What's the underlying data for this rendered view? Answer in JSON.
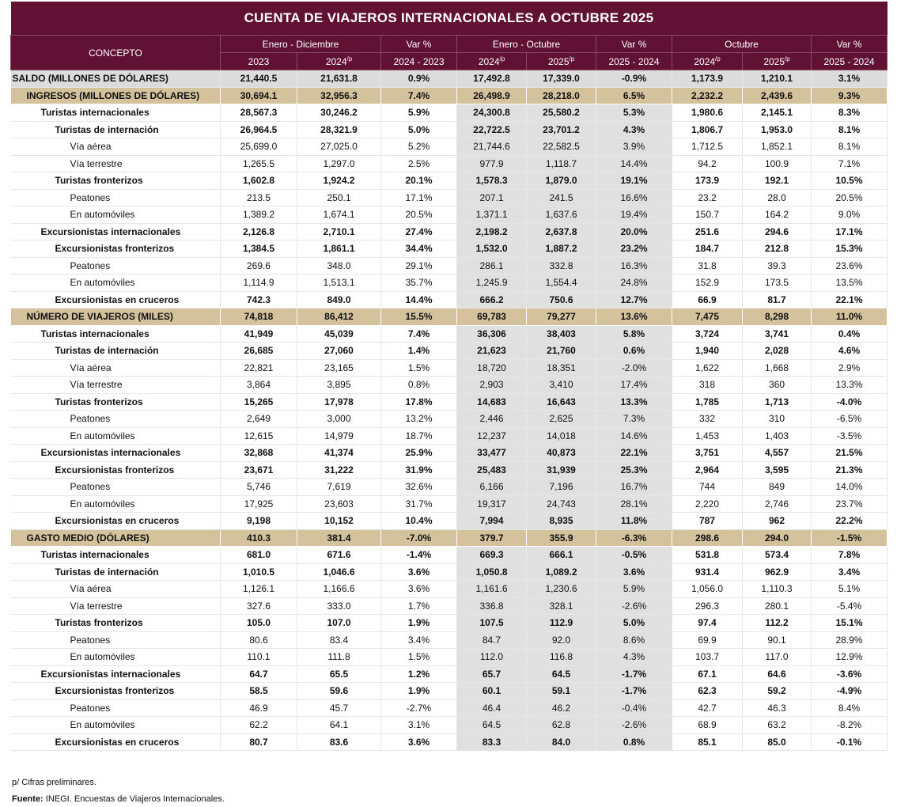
{
  "title": "CUENTA DE VIAJEROS INTERNACIONALES A OCTUBRE 2025",
  "header": {
    "concepto": "CONCEPTO",
    "groups": [
      "Enero - Diciembre",
      "Var %",
      "Enero - Octubre",
      "Var %",
      "Octubre",
      "Var %"
    ],
    "sub": [
      {
        "t": "2023",
        "p": ""
      },
      {
        "t": "2024",
        "p": "/p"
      },
      {
        "t": "2024 - 2023",
        "p": ""
      },
      {
        "t": "2024",
        "p": "/p"
      },
      {
        "t": "2025",
        "p": "/p"
      },
      {
        "t": "2025 - 2024",
        "p": ""
      },
      {
        "t": "2024",
        "p": "/p"
      },
      {
        "t": "2025",
        "p": "/p"
      },
      {
        "t": "2025 - 2024",
        "p": ""
      }
    ]
  },
  "colors": {
    "header_bg": "#611232",
    "section_bg": "#d4c29c",
    "saldo_bg": "#dcdcdc",
    "shade": "#e0e0e0"
  },
  "rows": [
    {
      "label": "SALDO (MILLONES DE DÓLARES)",
      "type": "saldo",
      "lvl": 0,
      "v": [
        "21,440.5",
        "21,631.8",
        "0.9%",
        "17,492.8",
        "17,339.0",
        "-0.9%",
        "1,173.9",
        "1,210.1",
        "3.1%"
      ]
    },
    {
      "label": "INGRESOS (MILLONES DE DÓLARES)",
      "type": "section",
      "lvl": 1,
      "v": [
        "30,694.1",
        "32,956.3",
        "7.4%",
        "26,498.9",
        "28,218.0",
        "6.5%",
        "2,232.2",
        "2,439.6",
        "9.3%"
      ]
    },
    {
      "label": "Turistas internacionales",
      "type": "b",
      "lvl": 2,
      "v": [
        "28,567.3",
        "30,246.2",
        "5.9%",
        "24,300.8",
        "25,580.2",
        "5.3%",
        "1,980.6",
        "2,145.1",
        "8.3%"
      ]
    },
    {
      "label": "Turistas de internación",
      "type": "b",
      "lvl": 3,
      "v": [
        "26,964.5",
        "28,321.9",
        "5.0%",
        "22,722.5",
        "23,701.2",
        "4.3%",
        "1,806.7",
        "1,953.0",
        "8.1%"
      ]
    },
    {
      "label": "Vía aérea",
      "type": "n",
      "lvl": 4,
      "v": [
        "25,699.0",
        "27,025.0",
        "5.2%",
        "21,744.6",
        "22,582.5",
        "3.9%",
        "1,712.5",
        "1,852.1",
        "8.1%"
      ]
    },
    {
      "label": "Vía terrestre",
      "type": "n",
      "lvl": 4,
      "v": [
        "1,265.5",
        "1,297.0",
        "2.5%",
        "977.9",
        "1,118.7",
        "14.4%",
        "94.2",
        "100.9",
        "7.1%"
      ]
    },
    {
      "label": "Turistas fronterizos",
      "type": "b",
      "lvl": 3,
      "v": [
        "1,602.8",
        "1,924.2",
        "20.1%",
        "1,578.3",
        "1,879.0",
        "19.1%",
        "173.9",
        "192.1",
        "10.5%"
      ]
    },
    {
      "label": "Peatones",
      "type": "n",
      "lvl": 4,
      "v": [
        "213.5",
        "250.1",
        "17.1%",
        "207.1",
        "241.5",
        "16.6%",
        "23.2",
        "28.0",
        "20.5%"
      ]
    },
    {
      "label": "En automóviles",
      "type": "n",
      "lvl": 4,
      "v": [
        "1,389.2",
        "1,674.1",
        "20.5%",
        "1,371.1",
        "1,637.6",
        "19.4%",
        "150.7",
        "164.2",
        "9.0%"
      ]
    },
    {
      "label": "Excursionistas internacionales",
      "type": "b",
      "lvl": 2,
      "v": [
        "2,126.8",
        "2,710.1",
        "27.4%",
        "2,198.2",
        "2,637.8",
        "20.0%",
        "251.6",
        "294.6",
        "17.1%"
      ]
    },
    {
      "label": "Excursionistas fronterizos",
      "type": "b",
      "lvl": 3,
      "v": [
        "1,384.5",
        "1,861.1",
        "34.4%",
        "1,532.0",
        "1,887.2",
        "23.2%",
        "184.7",
        "212.8",
        "15.3%"
      ]
    },
    {
      "label": "Peatones",
      "type": "n",
      "lvl": 4,
      "v": [
        "269.6",
        "348.0",
        "29.1%",
        "286.1",
        "332.8",
        "16.3%",
        "31.8",
        "39.3",
        "23.6%"
      ]
    },
    {
      "label": "En automóviles",
      "type": "n",
      "lvl": 4,
      "v": [
        "1,114.9",
        "1,513.1",
        "35.7%",
        "1,245.9",
        "1,554.4",
        "24.8%",
        "152.9",
        "173.5",
        "13.5%"
      ]
    },
    {
      "label": "Excursionistas en cruceros",
      "type": "b",
      "lvl": 3,
      "v": [
        "742.3",
        "849.0",
        "14.4%",
        "666.2",
        "750.6",
        "12.7%",
        "66.9",
        "81.7",
        "22.1%"
      ]
    },
    {
      "label": "NÚMERO DE VIAJEROS (MILES)",
      "type": "section",
      "lvl": 1,
      "v": [
        "74,818",
        "86,412",
        "15.5%",
        "69,783",
        "79,277",
        "13.6%",
        "7,475",
        "8,298",
        "11.0%"
      ]
    },
    {
      "label": "Turistas internacionales",
      "type": "b",
      "lvl": 2,
      "v": [
        "41,949",
        "45,039",
        "7.4%",
        "36,306",
        "38,403",
        "5.8%",
        "3,724",
        "3,741",
        "0.4%"
      ]
    },
    {
      "label": "Turistas de internación",
      "type": "b",
      "lvl": 3,
      "v": [
        "26,685",
        "27,060",
        "1.4%",
        "21,623",
        "21,760",
        "0.6%",
        "1,940",
        "2,028",
        "4.6%"
      ]
    },
    {
      "label": "Vía aérea",
      "type": "n",
      "lvl": 4,
      "v": [
        "22,821",
        "23,165",
        "1.5%",
        "18,720",
        "18,351",
        "-2.0%",
        "1,622",
        "1,668",
        "2.9%"
      ]
    },
    {
      "label": "Vía terrestre",
      "type": "n",
      "lvl": 4,
      "v": [
        "3,864",
        "3,895",
        "0.8%",
        "2,903",
        "3,410",
        "17.4%",
        "318",
        "360",
        "13.3%"
      ]
    },
    {
      "label": "Turistas fronterizos",
      "type": "b",
      "lvl": 3,
      "v": [
        "15,265",
        "17,978",
        "17.8%",
        "14,683",
        "16,643",
        "13.3%",
        "1,785",
        "1,713",
        "-4.0%"
      ]
    },
    {
      "label": "Peatones",
      "type": "n",
      "lvl": 4,
      "v": [
        "2,649",
        "3,000",
        "13.2%",
        "2,446",
        "2,625",
        "7.3%",
        "332",
        "310",
        "-6.5%"
      ]
    },
    {
      "label": "En automóviles",
      "type": "n",
      "lvl": 4,
      "v": [
        "12,615",
        "14,979",
        "18.7%",
        "12,237",
        "14,018",
        "14.6%",
        "1,453",
        "1,403",
        "-3.5%"
      ]
    },
    {
      "label": "Excursionistas internacionales",
      "type": "b",
      "lvl": 2,
      "v": [
        "32,868",
        "41,374",
        "25.9%",
        "33,477",
        "40,873",
        "22.1%",
        "3,751",
        "4,557",
        "21.5%"
      ]
    },
    {
      "label": "Excursionistas fronterizos",
      "type": "b",
      "lvl": 3,
      "v": [
        "23,671",
        "31,222",
        "31.9%",
        "25,483",
        "31,939",
        "25.3%",
        "2,964",
        "3,595",
        "21.3%"
      ]
    },
    {
      "label": "Peatones",
      "type": "n",
      "lvl": 4,
      "v": [
        "5,746",
        "7,619",
        "32.6%",
        "6,166",
        "7,196",
        "16.7%",
        "744",
        "849",
        "14.0%"
      ]
    },
    {
      "label": "En automóviles",
      "type": "n",
      "lvl": 4,
      "v": [
        "17,925",
        "23,603",
        "31.7%",
        "19,317",
        "24,743",
        "28.1%",
        "2,220",
        "2,746",
        "23.7%"
      ]
    },
    {
      "label": "Excursionistas en cruceros",
      "type": "b",
      "lvl": 3,
      "v": [
        "9,198",
        "10,152",
        "10.4%",
        "7,994",
        "8,935",
        "11.8%",
        "787",
        "962",
        "22.2%"
      ]
    },
    {
      "label": "GASTO MEDIO (DÓLARES)",
      "type": "section",
      "lvl": 1,
      "v": [
        "410.3",
        "381.4",
        "-7.0%",
        "379.7",
        "355.9",
        "-6.3%",
        "298.6",
        "294.0",
        "-1.5%"
      ]
    },
    {
      "label": "Turistas internacionales",
      "type": "b",
      "lvl": 2,
      "v": [
        "681.0",
        "671.6",
        "-1.4%",
        "669.3",
        "666.1",
        "-0.5%",
        "531.8",
        "573.4",
        "7.8%"
      ]
    },
    {
      "label": "Turistas de internación",
      "type": "b",
      "lvl": 3,
      "v": [
        "1,010.5",
        "1,046.6",
        "3.6%",
        "1,050.8",
        "1,089.2",
        "3.6%",
        "931.4",
        "962.9",
        "3.4%"
      ]
    },
    {
      "label": "Vía aérea",
      "type": "n",
      "lvl": 4,
      "v": [
        "1,126.1",
        "1,166.6",
        "3.6%",
        "1,161.6",
        "1,230.6",
        "5.9%",
        "1,056.0",
        "1,110.3",
        "5.1%"
      ]
    },
    {
      "label": "Vía terrestre",
      "type": "n",
      "lvl": 4,
      "v": [
        "327.6",
        "333.0",
        "1.7%",
        "336.8",
        "328.1",
        "-2.6%",
        "296.3",
        "280.1",
        "-5.4%"
      ]
    },
    {
      "label": "Turistas fronterizos",
      "type": "b",
      "lvl": 3,
      "v": [
        "105.0",
        "107.0",
        "1.9%",
        "107.5",
        "112.9",
        "5.0%",
        "97.4",
        "112.2",
        "15.1%"
      ]
    },
    {
      "label": "Peatones",
      "type": "n",
      "lvl": 4,
      "v": [
        "80.6",
        "83.4",
        "3.4%",
        "84.7",
        "92.0",
        "8.6%",
        "69.9",
        "90.1",
        "28.9%"
      ]
    },
    {
      "label": "En automóviles",
      "type": "n",
      "lvl": 4,
      "v": [
        "110.1",
        "111.8",
        "1.5%",
        "112.0",
        "116.8",
        "4.3%",
        "103.7",
        "117.0",
        "12.9%"
      ]
    },
    {
      "label": "Excursionistas internacionales",
      "type": "b",
      "lvl": 2,
      "v": [
        "64.7",
        "65.5",
        "1.2%",
        "65.7",
        "64.5",
        "-1.7%",
        "67.1",
        "64.6",
        "-3.6%"
      ]
    },
    {
      "label": "Excursionistas fronterizos",
      "type": "b",
      "lvl": 3,
      "v": [
        "58.5",
        "59.6",
        "1.9%",
        "60.1",
        "59.1",
        "-1.7%",
        "62.3",
        "59.2",
        "-4.9%"
      ]
    },
    {
      "label": "Peatones",
      "type": "n",
      "lvl": 4,
      "v": [
        "46.9",
        "45.7",
        "-2.7%",
        "46.4",
        "46.2",
        "-0.4%",
        "42.7",
        "46.3",
        "8.4%"
      ]
    },
    {
      "label": "En automóviles",
      "type": "n",
      "lvl": 4,
      "v": [
        "62.2",
        "64.1",
        "3.1%",
        "64.5",
        "62.8",
        "-2.6%",
        "68.9",
        "63.2",
        "-8.2%"
      ]
    },
    {
      "label": "Excursionistas en cruceros",
      "type": "b",
      "lvl": 3,
      "v": [
        "80.7",
        "83.6",
        "3.6%",
        "83.3",
        "84.0",
        "0.8%",
        "85.1",
        "85.0",
        "-0.1%"
      ]
    }
  ],
  "footnotes": {
    "prelim": "p/ Cifras preliminares.",
    "source_label": "Fuente:",
    "source_text": " INEGI. Encuestas de Viajeros Internacionales."
  }
}
